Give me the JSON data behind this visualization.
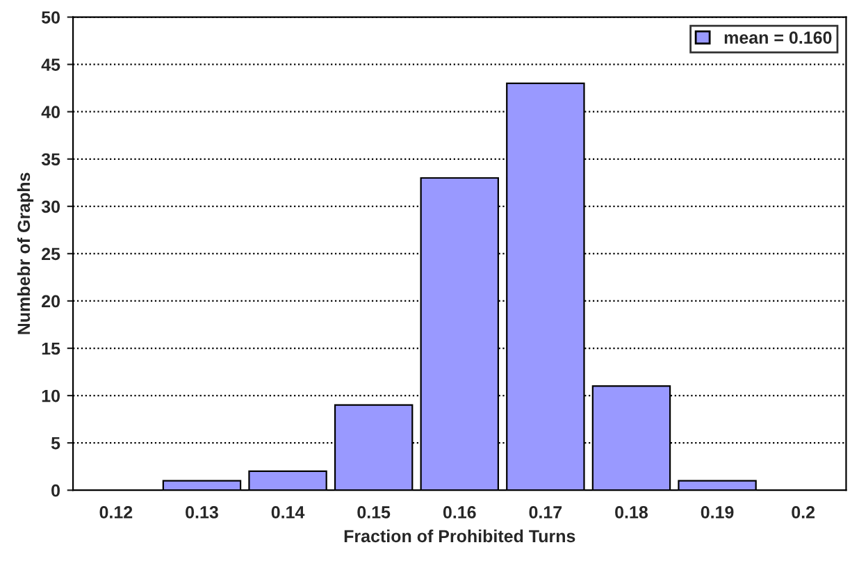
{
  "chart_data": {
    "type": "bar",
    "xlabel": "Fraction of Prohibited Turns",
    "ylabel": "Numbebr of Graphs",
    "categories": [
      "0.12",
      "0.13",
      "0.14",
      "0.15",
      "0.16",
      "0.17",
      "0.18",
      "0.19",
      "0.2"
    ],
    "series": [
      {
        "name": "mean = 0.160",
        "color": "#9999ff",
        "values": [
          0,
          1,
          2,
          9,
          33,
          43,
          11,
          1,
          0
        ]
      }
    ],
    "ylim": [
      0,
      50
    ],
    "yticks": [
      0,
      5,
      10,
      15,
      20,
      25,
      30,
      35,
      40,
      45,
      50
    ],
    "grid": "y",
    "legend": "top right"
  }
}
